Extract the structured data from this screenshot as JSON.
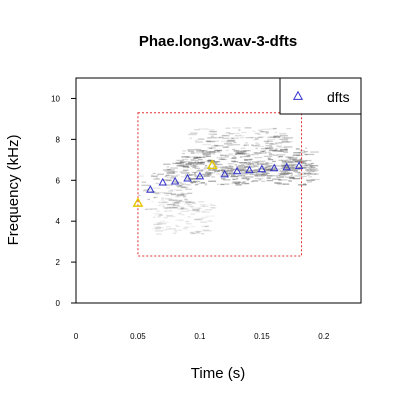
{
  "chart_data": {
    "type": "scatter",
    "title": "Phae.long3.wav-3-dfts",
    "xlabel": "Time (s)",
    "ylabel": "Frequency (kHz)",
    "xlim": [
      0,
      0.23
    ],
    "ylim": [
      0,
      11
    ],
    "x_ticks": [
      0,
      0.05,
      0.1,
      0.15,
      0.2
    ],
    "x_tick_labels": [
      "0",
      "0.05",
      "0.1",
      "0.15",
      "0.2"
    ],
    "y_ticks": [
      0,
      2,
      4,
      6,
      8,
      10
    ],
    "y_tick_labels": [
      "0",
      "2",
      "4",
      "6",
      "8",
      "10"
    ],
    "legend": {
      "position": "top-right",
      "label": "dfts",
      "marker": "triangle",
      "color": "#3333cc"
    },
    "colors": {
      "marker": "#3333cc",
      "highlight": "#e6c800",
      "box": "#e03030",
      "spectrogram": "#555555"
    },
    "series": [
      {
        "name": "dfts",
        "points": [
          {
            "x": 0.05,
            "y": 4.9,
            "highlight": true
          },
          {
            "x": 0.06,
            "y": 5.55,
            "highlight": false
          },
          {
            "x": 0.07,
            "y": 5.9,
            "highlight": false
          },
          {
            "x": 0.08,
            "y": 5.95,
            "highlight": false
          },
          {
            "x": 0.09,
            "y": 6.1,
            "highlight": false
          },
          {
            "x": 0.1,
            "y": 6.2,
            "highlight": false
          },
          {
            "x": 0.11,
            "y": 6.75,
            "highlight": true
          },
          {
            "x": 0.12,
            "y": 6.3,
            "highlight": false
          },
          {
            "x": 0.13,
            "y": 6.45,
            "highlight": false
          },
          {
            "x": 0.14,
            "y": 6.5,
            "highlight": false
          },
          {
            "x": 0.15,
            "y": 6.55,
            "highlight": false
          },
          {
            "x": 0.16,
            "y": 6.6,
            "highlight": false
          },
          {
            "x": 0.17,
            "y": 6.65,
            "highlight": false
          },
          {
            "x": 0.18,
            "y": 6.7,
            "highlight": false
          }
        ]
      }
    ],
    "selection_box": {
      "x": [
        0.05,
        0.182
      ],
      "y": [
        2.3,
        9.3
      ]
    },
    "spectrogram_blobs": [
      {
        "x": [
          0.085,
          0.19
        ],
        "y": [
          5.8,
          7.6
        ],
        "intensity": 0.55
      },
      {
        "x": [
          0.09,
          0.17
        ],
        "y": [
          7.2,
          8.6
        ],
        "intensity": 0.35
      },
      {
        "x": [
          0.05,
          0.09
        ],
        "y": [
          4.6,
          6.4
        ],
        "intensity": 0.35
      },
      {
        "x": [
          0.06,
          0.11
        ],
        "y": [
          3.4,
          5.0
        ],
        "intensity": 0.18
      },
      {
        "x": [
          0.07,
          0.19
        ],
        "y": [
          6.2,
          7.0
        ],
        "intensity": 0.45
      },
      {
        "x": [
          0.1,
          0.2
        ],
        "y": [
          6.3,
          6.8
        ],
        "intensity": 0.3
      }
    ]
  }
}
